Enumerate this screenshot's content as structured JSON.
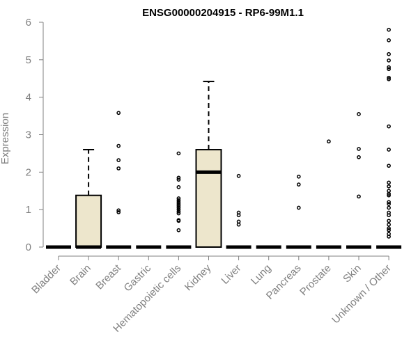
{
  "chart_data": {
    "type": "boxplot",
    "title": "ENSG00000204915 - RP6-99M1.1",
    "xlabel": "",
    "ylabel": "Expression",
    "ylim": [
      0,
      6
    ],
    "yticks": [
      0,
      1,
      2,
      3,
      4,
      5,
      6
    ],
    "categories": [
      "Bladder",
      "Brain",
      "Breast",
      "Gastric",
      "Hematopoietic cells",
      "Kidney",
      "Liver",
      "Lung",
      "Pancreas",
      "Prostate",
      "Skin",
      "Unknown / Other"
    ],
    "box_fill": "#ede6cc",
    "colors": {
      "axis": "#808080",
      "text": "#808080",
      "box_fill": "#ede6cc",
      "stroke": "#000000"
    },
    "series": [
      {
        "category": "Bladder",
        "q1": 0,
        "median": 0,
        "q3": 0,
        "whisker_low": 0,
        "whisker_high": 0,
        "outliers": []
      },
      {
        "category": "Brain",
        "q1": 0,
        "median": 0,
        "q3": 1.38,
        "whisker_low": 0,
        "whisker_high": 2.6,
        "outliers": []
      },
      {
        "category": "Breast",
        "q1": 0,
        "median": 0,
        "q3": 0,
        "whisker_low": 0,
        "whisker_high": 0,
        "outliers": [
          3.58,
          2.7,
          2.32,
          2.1,
          0.98,
          0.93
        ]
      },
      {
        "category": "Gastric",
        "q1": 0,
        "median": 0,
        "q3": 0,
        "whisker_low": 0,
        "whisker_high": 0,
        "outliers": []
      },
      {
        "category": "Hematopoietic cells",
        "q1": 0,
        "median": 0,
        "q3": 0,
        "whisker_low": 0,
        "whisker_high": 0,
        "outliers": [
          2.5,
          1.85,
          1.8,
          1.6,
          1.3,
          1.25,
          1.2,
          1.15,
          1.1,
          1.05,
          1.0,
          0.95,
          0.9,
          0.72,
          0.7,
          0.45
        ]
      },
      {
        "category": "Kidney",
        "q1": 0,
        "median": 2.0,
        "q3": 2.6,
        "whisker_low": 0,
        "whisker_high": 4.42,
        "outliers": []
      },
      {
        "category": "Liver",
        "q1": 0,
        "median": 0,
        "q3": 0,
        "whisker_low": 0,
        "whisker_high": 0,
        "outliers": [
          1.9,
          0.92,
          0.85,
          0.68,
          0.6
        ]
      },
      {
        "category": "Lung",
        "q1": 0,
        "median": 0,
        "q3": 0,
        "whisker_low": 0,
        "whisker_high": 0,
        "outliers": []
      },
      {
        "category": "Pancreas",
        "q1": 0,
        "median": 0,
        "q3": 0,
        "whisker_low": 0,
        "whisker_high": 0,
        "outliers": [
          1.88,
          1.67,
          1.05
        ]
      },
      {
        "category": "Prostate",
        "q1": 0,
        "median": 0,
        "q3": 0,
        "whisker_low": 0,
        "whisker_high": 0,
        "outliers": [
          2.82
        ]
      },
      {
        "category": "Skin",
        "q1": 0,
        "median": 0,
        "q3": 0,
        "whisker_low": 0,
        "whisker_high": 0,
        "outliers": [
          3.55,
          2.62,
          2.4,
          1.35
        ]
      },
      {
        "category": "Unknown / Other",
        "q1": 0,
        "median": 0,
        "q3": 0,
        "whisker_low": 0,
        "whisker_high": 0,
        "outliers": [
          5.8,
          5.52,
          5.15,
          4.98,
          4.8,
          4.75,
          4.52,
          4.48,
          3.22,
          2.6,
          2.17,
          1.72,
          1.62,
          1.5,
          1.42,
          1.38,
          1.2,
          1.15,
          1.05,
          0.92,
          0.85,
          0.7,
          0.6,
          0.5,
          0.45,
          0.35,
          0.28
        ]
      }
    ],
    "grid": false,
    "legend": "none"
  }
}
